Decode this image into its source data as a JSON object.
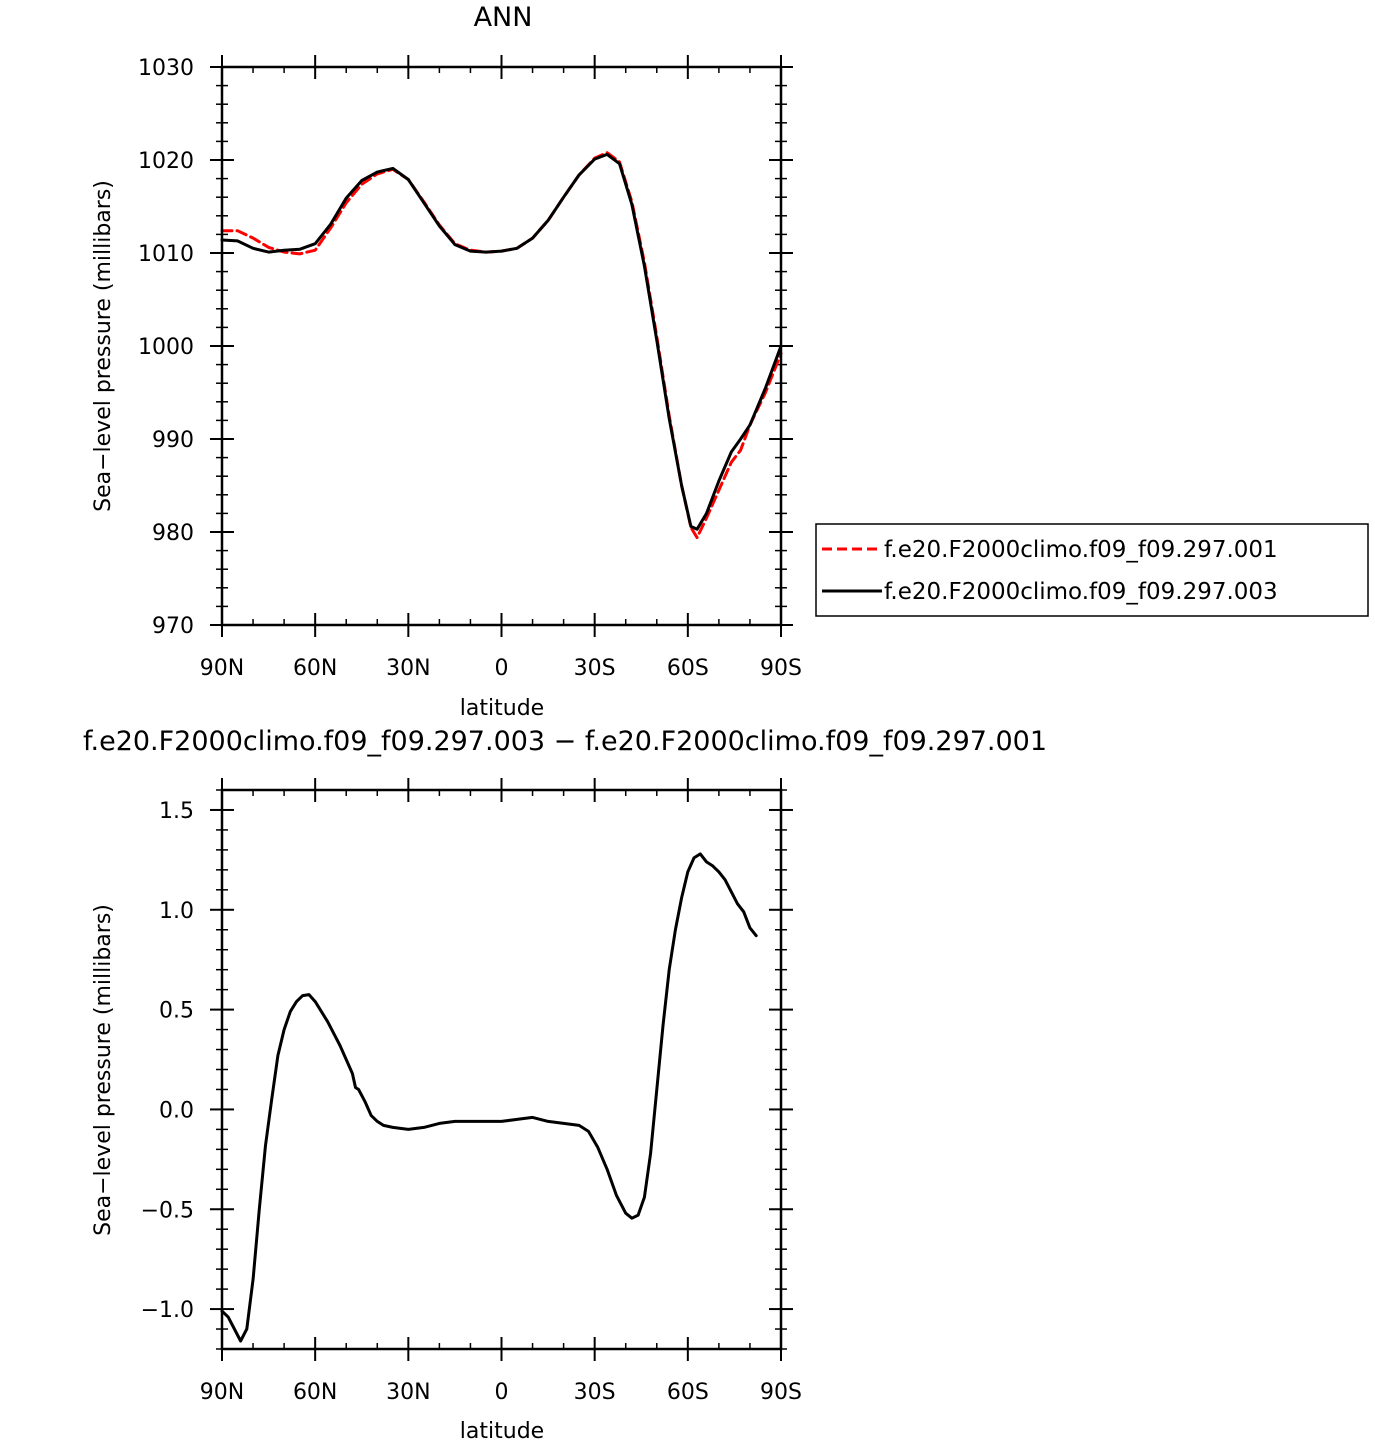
{
  "chart_data": [
    {
      "type": "line",
      "title": "ANN",
      "xlabel": "latitude",
      "ylabel": "Sea−level pressure (millibars)",
      "xlim": [
        90,
        -90
      ],
      "ylim": [
        970,
        1030
      ],
      "x_ticks": [
        {
          "value": 90,
          "label": "90N"
        },
        {
          "value": 60,
          "label": "60N"
        },
        {
          "value": 30,
          "label": "30N"
        },
        {
          "value": 0,
          "label": "0"
        },
        {
          "value": -30,
          "label": "30S"
        },
        {
          "value": -60,
          "label": "60S"
        },
        {
          "value": -90,
          "label": "90S"
        }
      ],
      "y_ticks": [
        {
          "value": 970,
          "label": "970"
        },
        {
          "value": 980,
          "label": "980"
        },
        {
          "value": 990,
          "label": "990"
        },
        {
          "value": 1000,
          "label": "1000"
        },
        {
          "value": 1010,
          "label": "1010"
        },
        {
          "value": 1020,
          "label": "1020"
        },
        {
          "value": 1030,
          "label": "1030"
        }
      ],
      "legend_position": "right",
      "series": [
        {
          "name": "f.e20.F2000climo.f09_f09.297.001",
          "color": "#ff0000",
          "style": "dashed",
          "points": [
            [
              90,
              1012.4
            ],
            [
              85,
              1012.4
            ],
            [
              80,
              1011.6
            ],
            [
              75,
              1010.6
            ],
            [
              70,
              1010.1
            ],
            [
              65,
              1009.9
            ],
            [
              60,
              1010.3
            ],
            [
              55,
              1012.7
            ],
            [
              50,
              1015.4
            ],
            [
              45,
              1017.4
            ],
            [
              40,
              1018.5
            ],
            [
              35,
              1019.0
            ],
            [
              30,
              1017.9
            ],
            [
              25,
              1015.5
            ],
            [
              20,
              1013.0
            ],
            [
              15,
              1011.0
            ],
            [
              10,
              1010.3
            ],
            [
              5,
              1010.1
            ],
            [
              0,
              1010.2
            ],
            [
              -5,
              1010.5
            ],
            [
              -10,
              1011.6
            ],
            [
              -15,
              1013.5
            ],
            [
              -20,
              1016.0
            ],
            [
              -25,
              1018.4
            ],
            [
              -30,
              1020.2
            ],
            [
              -34,
              1020.8
            ],
            [
              -38,
              1019.8
            ],
            [
              -42,
              1015.5
            ],
            [
              -46,
              1009.0
            ],
            [
              -50,
              1001.0
            ],
            [
              -54,
              992.5
            ],
            [
              -58,
              985.0
            ],
            [
              -61,
              980.5
            ],
            [
              -63,
              979.4
            ],
            [
              -66,
              981.5
            ],
            [
              -70,
              984.5
            ],
            [
              -74,
              987.5
            ],
            [
              -77,
              988.8
            ],
            [
              -80,
              991.5
            ],
            [
              -85,
              995.0
            ],
            [
              -90,
              999.2
            ]
          ]
        },
        {
          "name": "f.e20.F2000climo.f09_f09.297.003",
          "color": "#000000",
          "style": "solid",
          "points": [
            [
              90,
              1011.4
            ],
            [
              85,
              1011.3
            ],
            [
              80,
              1010.5
            ],
            [
              75,
              1010.1
            ],
            [
              70,
              1010.3
            ],
            [
              65,
              1010.4
            ],
            [
              60,
              1011.0
            ],
            [
              55,
              1013.1
            ],
            [
              50,
              1015.9
            ],
            [
              45,
              1017.8
            ],
            [
              40,
              1018.7
            ],
            [
              35,
              1019.1
            ],
            [
              30,
              1017.9
            ],
            [
              25,
              1015.4
            ],
            [
              20,
              1012.9
            ],
            [
              15,
              1010.9
            ],
            [
              10,
              1010.2
            ],
            [
              5,
              1010.1
            ],
            [
              0,
              1010.2
            ],
            [
              -5,
              1010.5
            ],
            [
              -10,
              1011.6
            ],
            [
              -15,
              1013.5
            ],
            [
              -20,
              1016.0
            ],
            [
              -25,
              1018.4
            ],
            [
              -30,
              1020.1
            ],
            [
              -34,
              1020.6
            ],
            [
              -38,
              1019.6
            ],
            [
              -42,
              1015.2
            ],
            [
              -46,
              1008.6
            ],
            [
              -50,
              1000.6
            ],
            [
              -54,
              992.2
            ],
            [
              -58,
              985.0
            ],
            [
              -61,
              980.6
            ],
            [
              -63,
              980.3
            ],
            [
              -66,
              982.0
            ],
            [
              -70,
              985.5
            ],
            [
              -74,
              988.6
            ],
            [
              -77,
              990.0
            ],
            [
              -80,
              991.5
            ],
            [
              -85,
              995.5
            ],
            [
              -90,
              1000.0
            ]
          ]
        }
      ]
    },
    {
      "type": "line",
      "title": "f.e20.F2000climo.f09_f09.297.003 − f.e20.F2000climo.f09_f09.297.001",
      "xlabel": "latitude",
      "ylabel": "Sea−level pressure (millibars)",
      "xlim": [
        90,
        -90
      ],
      "ylim": [
        -1.2,
        1.6
      ],
      "x_ticks": [
        {
          "value": 90,
          "label": "90N"
        },
        {
          "value": 60,
          "label": "60N"
        },
        {
          "value": 30,
          "label": "30N"
        },
        {
          "value": 0,
          "label": "0"
        },
        {
          "value": -30,
          "label": "30S"
        },
        {
          "value": -60,
          "label": "60S"
        },
        {
          "value": -90,
          "label": "90S"
        }
      ],
      "y_ticks": [
        {
          "value": -1.0,
          "label": "−1.0"
        },
        {
          "value": -0.5,
          "label": "−0.5"
        },
        {
          "value": 0.0,
          "label": "0.0"
        },
        {
          "value": 0.5,
          "label": "0.5"
        },
        {
          "value": 1.0,
          "label": "1.0"
        },
        {
          "value": 1.5,
          "label": "1.5"
        }
      ],
      "series": [
        {
          "color": "#000000",
          "style": "solid",
          "points": [
            [
              90,
              -1.01
            ],
            [
              88,
              -1.04
            ],
            [
              86,
              -1.1
            ],
            [
              84,
              -1.16
            ],
            [
              82,
              -1.1
            ],
            [
              80,
              -0.85
            ],
            [
              78,
              -0.5
            ],
            [
              76,
              -0.18
            ],
            [
              74,
              0.05
            ],
            [
              72,
              0.27
            ],
            [
              70,
              0.4
            ],
            [
              68,
              0.49
            ],
            [
              66,
              0.54
            ],
            [
              64,
              0.57
            ],
            [
              62,
              0.575
            ],
            [
              60,
              0.54
            ],
            [
              58,
              0.49
            ],
            [
              56,
              0.44
            ],
            [
              54,
              0.38
            ],
            [
              52,
              0.32
            ],
            [
              50,
              0.25
            ],
            [
              48,
              0.18
            ],
            [
              47,
              0.11
            ],
            [
              46,
              0.1
            ],
            [
              44,
              0.04
            ],
            [
              42,
              -0.03
            ],
            [
              40,
              -0.06
            ],
            [
              38,
              -0.08
            ],
            [
              35,
              -0.09
            ],
            [
              30,
              -0.1
            ],
            [
              25,
              -0.09
            ],
            [
              20,
              -0.07
            ],
            [
              15,
              -0.06
            ],
            [
              10,
              -0.06
            ],
            [
              5,
              -0.06
            ],
            [
              0,
              -0.06
            ],
            [
              -5,
              -0.05
            ],
            [
              -10,
              -0.04
            ],
            [
              -15,
              -0.06
            ],
            [
              -20,
              -0.07
            ],
            [
              -25,
              -0.08
            ],
            [
              -28,
              -0.11
            ],
            [
              -31,
              -0.19
            ],
            [
              -34,
              -0.3
            ],
            [
              -37,
              -0.43
            ],
            [
              -40,
              -0.52
            ],
            [
              -42,
              -0.545
            ],
            [
              -44,
              -0.53
            ],
            [
              -46,
              -0.44
            ],
            [
              -48,
              -0.22
            ],
            [
              -50,
              0.1
            ],
            [
              -52,
              0.42
            ],
            [
              -54,
              0.7
            ],
            [
              -56,
              0.9
            ],
            [
              -58,
              1.06
            ],
            [
              -60,
              1.19
            ],
            [
              -62,
              1.26
            ],
            [
              -64,
              1.28
            ],
            [
              -66,
              1.24
            ],
            [
              -68,
              1.22
            ],
            [
              -70,
              1.19
            ],
            [
              -72,
              1.15
            ],
            [
              -74,
              1.09
            ],
            [
              -76,
              1.03
            ],
            [
              -78,
              0.99
            ],
            [
              -80,
              0.91
            ],
            [
              -82,
              0.87
            ]
          ]
        }
      ]
    }
  ]
}
